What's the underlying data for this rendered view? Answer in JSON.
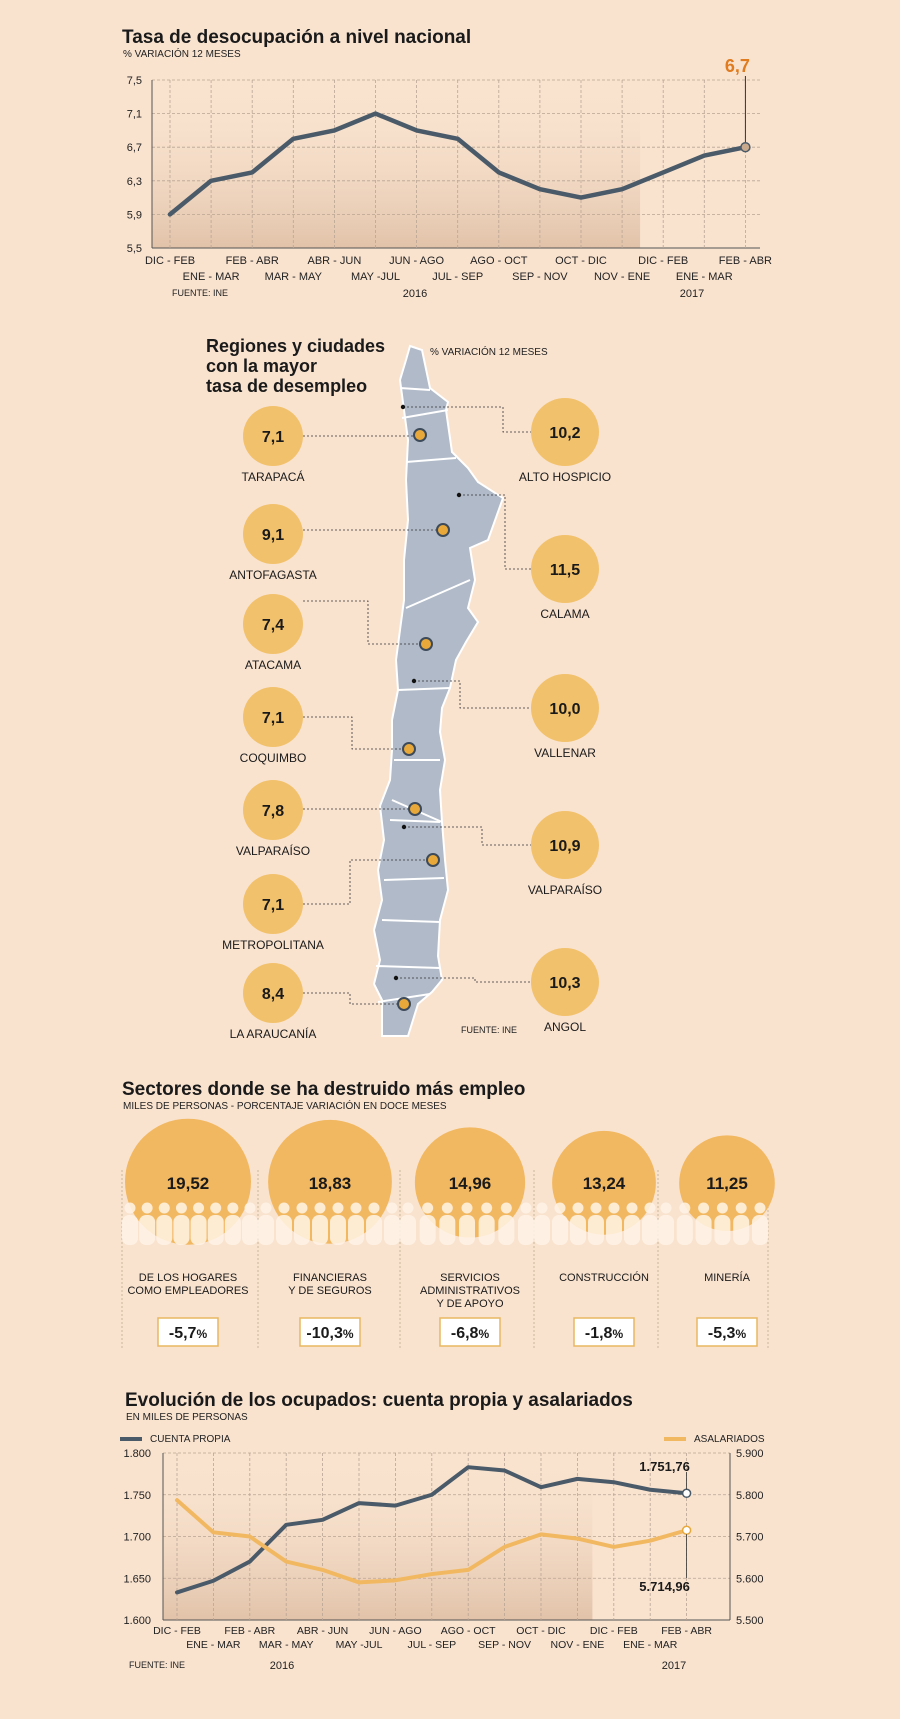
{
  "chart_data": [
    {
      "type": "line",
      "title": "Tasa de desocupación a nivel nacional",
      "subtitle": "% VARIACIÓN 12 MESES",
      "categories": [
        "DIC - FEB",
        "ENE - MAR",
        "FEB - ABR",
        "MAR - MAY",
        "ABR - JUN",
        "MAY -JUL",
        "JUN - AGO",
        "JUL - SEP",
        "AGO - OCT",
        "SEP - NOV",
        "OCT - DIC",
        "NOV - ENE",
        "DIC - FEB",
        "ENE - MAR",
        "FEB - ABR"
      ],
      "values": [
        5.9,
        6.3,
        6.4,
        6.8,
        6.9,
        7.1,
        6.9,
        6.8,
        6.4,
        6.2,
        6.1,
        6.2,
        6.4,
        6.6,
        6.7
      ],
      "y_ticks": [
        "7,5",
        "7,1",
        "6,7",
        "6,3",
        "5,9",
        "5,5"
      ],
      "ylim": [
        5.5,
        7.5
      ],
      "years": [
        "2016",
        "2017"
      ],
      "highlight_label": "6,7",
      "source": "FUENTE: INE",
      "colors": {
        "line": "#4a5a68",
        "highlight": "#e07b1f",
        "shade": "#e6c9b0"
      }
    },
    {
      "type": "table",
      "title_lines": [
        "Regiones y ciudades",
        "con la mayor",
        "tasa de desempleo"
      ],
      "subtitle": "% VARIACIÓN 12 MESES",
      "regions": [
        {
          "value": "7,1",
          "name": "TARAPACÁ"
        },
        {
          "value": "9,1",
          "name": "ANTOFAGASTA"
        },
        {
          "value": "7,4",
          "name": "ATACAMA"
        },
        {
          "value": "7,1",
          "name": "COQUIMBO"
        },
        {
          "value": "7,8",
          "name": "VALPARAÍSO"
        },
        {
          "value": "7,1",
          "name": "METROPOLITANA"
        },
        {
          "value": "8,4",
          "name": "LA ARAUCANÍA"
        }
      ],
      "cities": [
        {
          "value": "10,2",
          "name": "ALTO HOSPICIO"
        },
        {
          "value": "11,5",
          "name": "CALAMA"
        },
        {
          "value": "10,0",
          "name": "VALLENAR"
        },
        {
          "value": "10,9",
          "name": "VALPARAÍSO"
        },
        {
          "value": "10,3",
          "name": "ANGOL"
        }
      ],
      "source": "FUENTE: INE",
      "colors": {
        "bubble": "#f2c16b",
        "map": "#b0bac8",
        "dot": "#e8a93a"
      }
    },
    {
      "type": "bar",
      "title": "Sectores donde se ha destruido más empleo",
      "subtitle": "MILES DE PERSONAS - PORCENTAJE VARIACIÓN EN DOCE MESES",
      "sectors": [
        {
          "value": 19.52,
          "label": "19,52",
          "name_lines": [
            "DE LOS HOGARES",
            "COMO EMPLEADORES"
          ],
          "pct": "-5,7",
          "pct_unit": "%"
        },
        {
          "value": 18.83,
          "label": "18,83",
          "name_lines": [
            "FINANCIERAS",
            "Y DE SEGUROS"
          ],
          "pct": "-10,3",
          "pct_unit": "%"
        },
        {
          "value": 14.96,
          "label": "14,96",
          "name_lines": [
            "SERVICIOS",
            "ADMINISTRATIVOS",
            "Y DE APOYO"
          ],
          "pct": "-6,8",
          "pct_unit": "%"
        },
        {
          "value": 13.24,
          "label": "13,24",
          "name_lines": [
            "CONSTRUCCIÓN"
          ],
          "pct": "-1,8",
          "pct_unit": "%"
        },
        {
          "value": 11.25,
          "label": "11,25",
          "name_lines": [
            "MINERÍA"
          ],
          "pct": "-5,3",
          "pct_unit": "%"
        }
      ],
      "colors": {
        "bubble": "#f2b861"
      }
    },
    {
      "type": "line",
      "title": "Evolución de los ocupados: cuenta propia y asalariados",
      "subtitle": "EN MILES DE PERSONAS",
      "categories": [
        "DIC - FEB",
        "ENE - MAR",
        "FEB - ABR",
        "MAR - MAY",
        "ABR - JUN",
        "MAY -JUL",
        "JUN - AGO",
        "JUL - SEP",
        "AGO - OCT",
        "SEP - NOV",
        "OCT - DIC",
        "NOV - ENE",
        "DIC - FEB",
        "ENE - MAR",
        "FEB - ABR"
      ],
      "series": [
        {
          "name": "CUENTA PROPIA",
          "axis": "left",
          "values": [
            1633,
            1647,
            1670,
            1714,
            1720,
            1740,
            1737,
            1750,
            1783,
            1779,
            1759,
            1769,
            1765,
            1756,
            1751.76
          ],
          "end_label": "1.751,76",
          "color": "#4a5a68"
        },
        {
          "name": "ASALARIADOS",
          "axis": "right",
          "values": [
            5787,
            5710,
            5700,
            5640,
            5620,
            5590,
            5595,
            5610,
            5620,
            5675,
            5705,
            5695,
            5675,
            5690,
            5714.96
          ],
          "end_label": "5.714,96",
          "color": "#f2b861"
        }
      ],
      "y_left_ticks": [
        "1.800",
        "1.750",
        "1.700",
        "1.650",
        "1.600"
      ],
      "y_right_ticks": [
        "5.900",
        "5.800",
        "5.700",
        "5.600",
        "5.500"
      ],
      "ylim_left": [
        1600,
        1800
      ],
      "ylim_right": [
        5500,
        5900
      ],
      "years": [
        "2016",
        "2017"
      ],
      "source": "FUENTE: INE"
    }
  ]
}
